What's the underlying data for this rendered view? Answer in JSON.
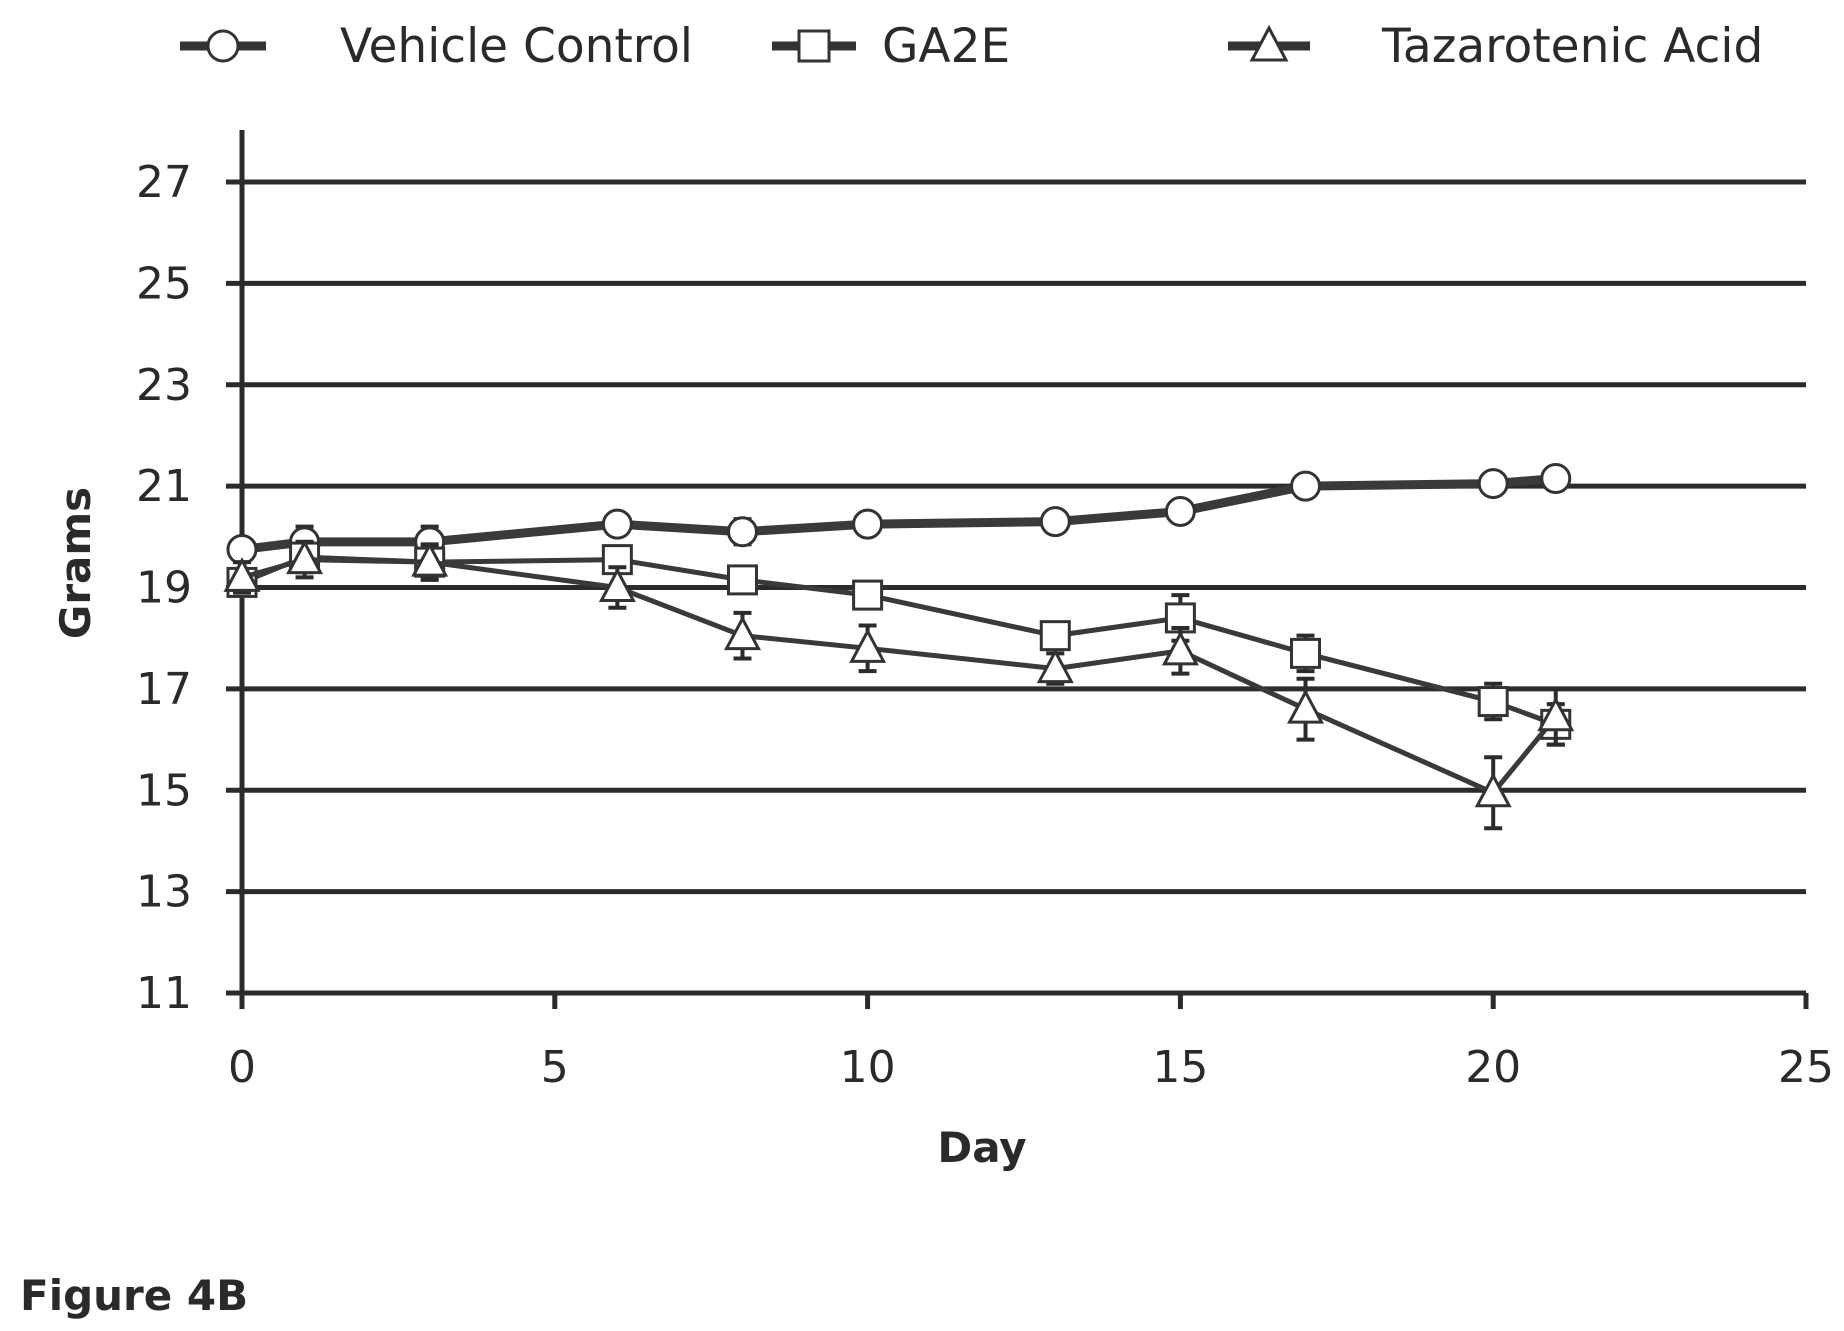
{
  "figure_label": "Figure 4B",
  "chart_data": {
    "type": "line",
    "xlabel": "Day",
    "ylabel": "Grams",
    "xlim": [
      0,
      25
    ],
    "ylim": [
      11,
      27
    ],
    "x_ticks": [
      0,
      5,
      10,
      15,
      20,
      25
    ],
    "y_ticks": [
      11,
      13,
      15,
      17,
      19,
      21,
      23,
      25,
      27
    ],
    "grid": "horizontal",
    "legend_position": "top",
    "series": [
      {
        "name": "Vehicle Control",
        "marker": "circle",
        "x": [
          0,
          1,
          3,
          6,
          8,
          10,
          13,
          15,
          17,
          20,
          21
        ],
        "values": [
          19.75,
          19.9,
          19.9,
          20.25,
          20.1,
          20.25,
          20.3,
          20.5,
          21.0,
          21.05,
          21.15
        ],
        "errors": [
          0.2,
          0.3,
          0.3,
          0.2,
          0.25,
          0.2,
          0.15,
          0.15,
          0.1,
          0.1,
          0.1
        ]
      },
      {
        "name": "GA2E",
        "marker": "square",
        "x": [
          0,
          1,
          3,
          6,
          8,
          10,
          13,
          15,
          17,
          20,
          21
        ],
        "values": [
          19.1,
          19.6,
          19.5,
          19.55,
          19.15,
          18.85,
          18.05,
          18.4,
          17.7,
          16.75,
          16.3
        ],
        "errors": [
          0.2,
          0.3,
          0.3,
          0.25,
          0.25,
          0.2,
          0.25,
          0.45,
          0.35,
          0.35,
          0.4
        ]
      },
      {
        "name": "Tazarotenic Acid",
        "marker": "triangle",
        "x": [
          0,
          1,
          3,
          6,
          8,
          10,
          13,
          15,
          17,
          20,
          21
        ],
        "values": [
          19.2,
          19.55,
          19.5,
          19.0,
          18.05,
          17.8,
          17.4,
          17.75,
          16.6,
          14.95,
          16.45
        ],
        "errors": [
          0.3,
          0.35,
          0.35,
          0.4,
          0.45,
          0.45,
          0.3,
          0.45,
          0.6,
          0.7,
          0.55
        ]
      }
    ]
  }
}
